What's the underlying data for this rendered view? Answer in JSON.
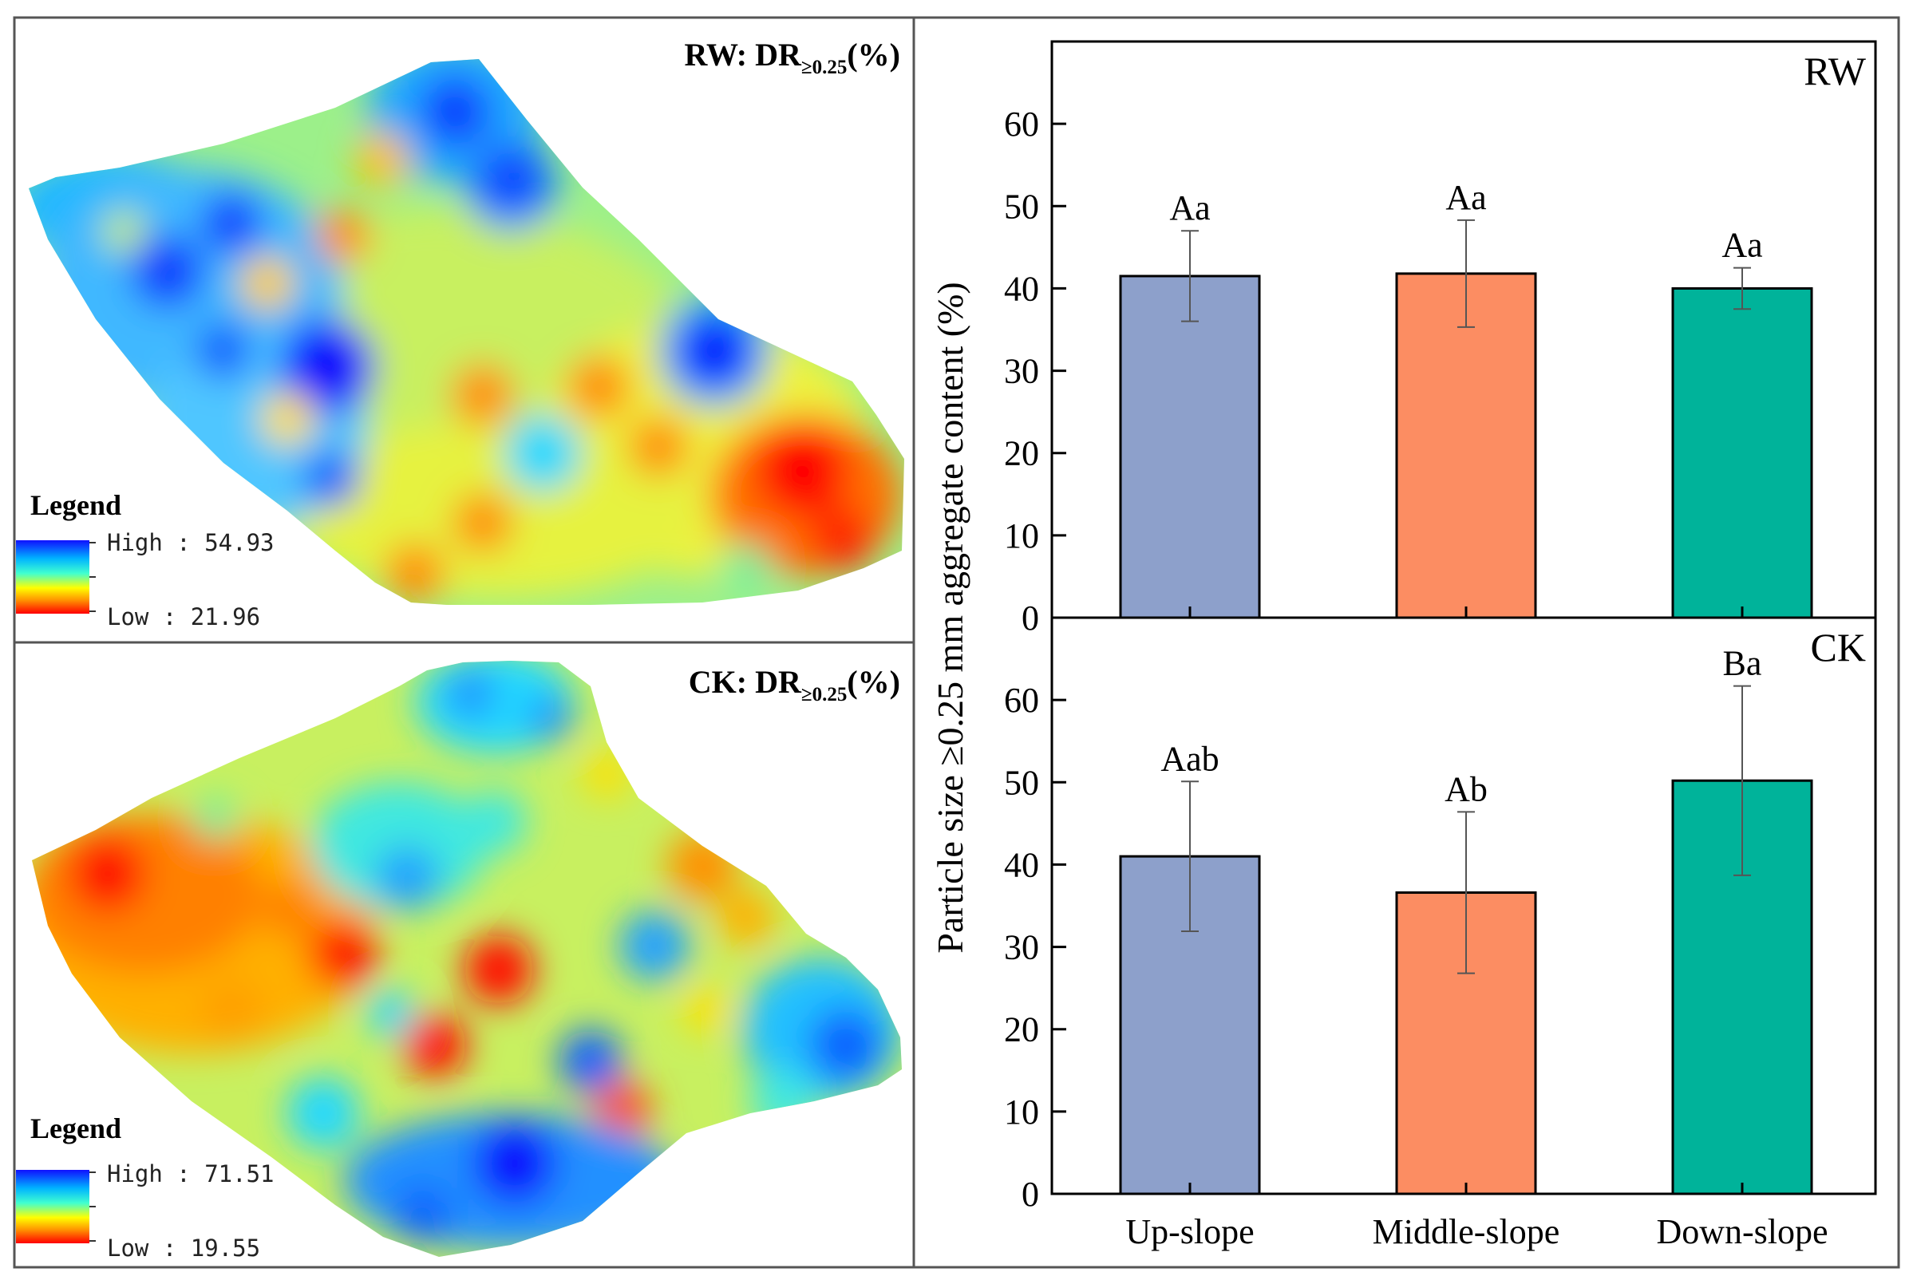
{
  "maps": [
    {
      "id": "rw",
      "title_main": "RW: DR",
      "title_sub": "≥0.25",
      "title_unit": "(%)",
      "legend_title": "Legend",
      "legend_high": "High : 54.93",
      "legend_low": "Low : 21.96"
    },
    {
      "id": "ck",
      "title_main": "CK:  DR",
      "title_sub": "≥0.25",
      "title_unit": "(%)",
      "legend_title": "Legend",
      "legend_high": "High : 71.51",
      "legend_low": "Low : 19.55"
    }
  ],
  "colors": {
    "up_slope": "#8da0cb",
    "middle_slope": "#fc8d62",
    "down_slope": "#00b39a",
    "map_high": "#1010ff",
    "map_low": "#ff0000"
  },
  "chart_data": {
    "type": "bar",
    "ylabel": "Particle size ≥0.25 mm aggregate content (%)",
    "xlabel": "",
    "categories": [
      "Up-slope",
      "Middle-slope",
      "Down-slope"
    ],
    "ylim": [
      0,
      70
    ],
    "yticks": [
      0,
      10,
      20,
      30,
      40,
      50,
      60
    ],
    "panels": [
      {
        "name": "RW",
        "values": [
          41.5,
          41.8,
          40.0
        ],
        "errors": [
          5.5,
          6.5,
          2.5
        ],
        "labels": [
          "Aa",
          "Aa",
          "Aa"
        ]
      },
      {
        "name": "CK",
        "values": [
          41.0,
          36.6,
          50.2
        ],
        "errors": [
          9.1,
          9.8,
          11.5
        ],
        "labels": [
          "Aab",
          "Ab",
          "Ba"
        ]
      }
    ]
  }
}
